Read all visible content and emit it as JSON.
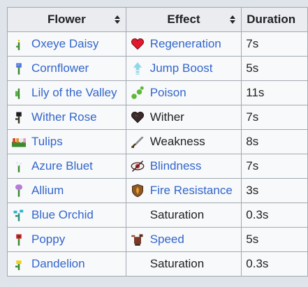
{
  "headers": {
    "flower": "Flower",
    "effect": "Effect",
    "duration": "Duration"
  },
  "rows": [
    {
      "flower": "Oxeye Daisy",
      "flower_icon": "oxeye-daisy-icon",
      "effect": "Regeneration",
      "effect_icon": "regeneration-heart-icon",
      "effect_link": true,
      "duration": "7s"
    },
    {
      "flower": "Cornflower",
      "flower_icon": "cornflower-icon",
      "effect": "Jump Boost",
      "effect_icon": "jump-boost-icon",
      "effect_link": true,
      "duration": "5s"
    },
    {
      "flower": "Lily of the Valley",
      "flower_icon": "lily-of-the-valley-icon",
      "effect": "Poison",
      "effect_icon": "poison-icon",
      "effect_link": true,
      "duration": "11s"
    },
    {
      "flower": "Wither Rose",
      "flower_icon": "wither-rose-icon",
      "effect": "Wither",
      "effect_icon": "wither-heart-icon",
      "effect_link": false,
      "duration": "7s"
    },
    {
      "flower": "Tulips",
      "flower_icon": "tulips-icon",
      "effect": "Weakness",
      "effect_icon": "weakness-sword-icon",
      "effect_link": false,
      "duration": "8s"
    },
    {
      "flower": "Azure Bluet",
      "flower_icon": "azure-bluet-icon",
      "effect": "Blindness",
      "effect_icon": "blindness-eye-icon",
      "effect_link": true,
      "duration": "7s"
    },
    {
      "flower": "Allium",
      "flower_icon": "allium-icon",
      "effect": "Fire Resistance",
      "effect_icon": "fire-resistance-shield-icon",
      "effect_link": true,
      "duration": "3s"
    },
    {
      "flower": "Blue Orchid",
      "flower_icon": "blue-orchid-icon",
      "effect": "Saturation",
      "effect_icon": "",
      "effect_link": false,
      "duration": "0.3s"
    },
    {
      "flower": "Poppy",
      "flower_icon": "poppy-icon",
      "effect": "Speed",
      "effect_icon": "speed-icon",
      "effect_link": true,
      "duration": "5s"
    },
    {
      "flower": "Dandelion",
      "flower_icon": "dandelion-icon",
      "effect": "Saturation",
      "effect_icon": "",
      "effect_link": false,
      "duration": "0.3s"
    }
  ],
  "colors": {
    "link": "#3366cc",
    "text": "#202122",
    "header_bg": "#eaecf0",
    "border": "#a2a9b1"
  }
}
